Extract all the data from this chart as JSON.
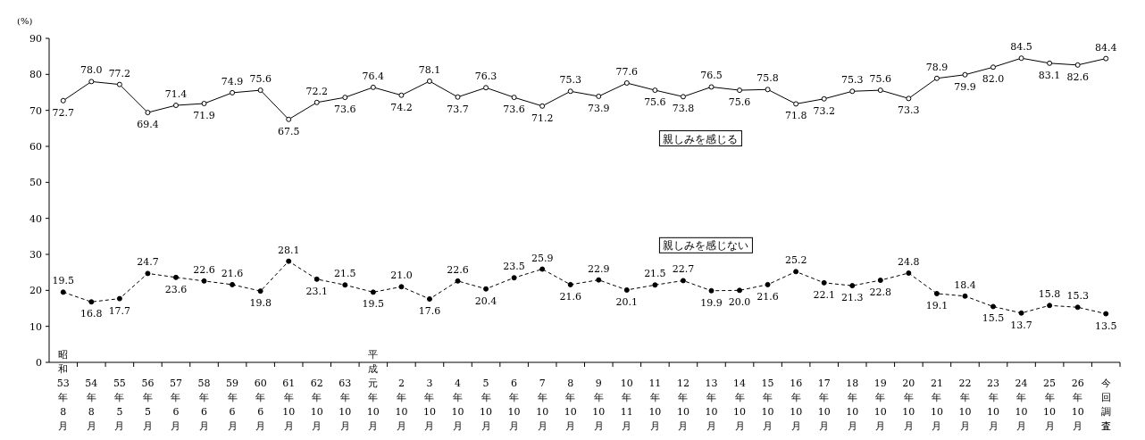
{
  "chart_data": {
    "type": "line",
    "ylabel": "(%)",
    "categories": [
      "昭和53年8月",
      "54年8月",
      "55年5月",
      "56年5月",
      "57年6月",
      "58年6月",
      "59年6月",
      "60年6月",
      "61年10月",
      "62年10月",
      "63年10月",
      "平成元年10月",
      "2年10月",
      "3年10月",
      "4年10月",
      "5年10月",
      "6年10月",
      "7年10月",
      "8年10月",
      "9年10月",
      "10年11月",
      "11年10月",
      "12年10月",
      "13年10月",
      "14年10月",
      "15年10月",
      "16年10月",
      "17年10月",
      "18年10月",
      "19年10月",
      "20年10月",
      "21年10月",
      "22年10月",
      "23年10月",
      "24年10月",
      "25年10月",
      "26年10月",
      "今回調査"
    ],
    "series": [
      {
        "name": "親しみを感じる",
        "color": "#000000",
        "marker": "circle",
        "line_style": "solid",
        "values": [
          72.7,
          78.0,
          77.2,
          69.4,
          71.4,
          71.9,
          74.9,
          75.6,
          67.5,
          72.2,
          73.6,
          76.4,
          74.2,
          78.1,
          73.7,
          76.3,
          73.6,
          71.2,
          75.3,
          73.9,
          77.6,
          75.6,
          73.8,
          76.5,
          75.6,
          75.8,
          71.8,
          73.2,
          75.3,
          75.6,
          73.3,
          78.9,
          79.9,
          82.0,
          84.5,
          83.1,
          82.6,
          84.4
        ],
        "value_labels": [
          "72.7",
          "78.0",
          "77.2",
          "69.4",
          "71.4",
          "71.9",
          "74.9",
          "75.6",
          "67.5",
          "72.2",
          "73.6",
          "76.4",
          "74.2",
          "78.1",
          "73.7",
          "76.3",
          "73.6",
          "71.2",
          "75.3",
          "73.9",
          "77.6",
          "75.6",
          "73.8",
          "76.5",
          "75.6",
          "75.8",
          "71.8",
          "73.2",
          "75.3",
          "75.6",
          "73.3",
          "78.9",
          "79.9",
          "82.0",
          "84.5",
          "83.1",
          "82.6",
          "84.4"
        ]
      },
      {
        "name": "親しみを感じない",
        "color": "#000000",
        "marker": "circle",
        "line_style": "dashed",
        "values": [
          19.5,
          16.8,
          17.7,
          24.7,
          23.6,
          22.6,
          21.6,
          19.8,
          28.1,
          23.1,
          21.5,
          19.5,
          21.0,
          17.6,
          22.6,
          20.4,
          23.5,
          25.9,
          21.6,
          22.9,
          20.1,
          21.5,
          22.7,
          19.9,
          20.0,
          21.6,
          25.2,
          22.1,
          21.3,
          22.8,
          24.8,
          19.1,
          18.4,
          15.5,
          13.7,
          15.8,
          15.3,
          13.5
        ],
        "value_labels": [
          "19.5",
          "16.8",
          "17.7",
          "24.7",
          "23.6",
          "22.6",
          "21.6",
          "19.8",
          "28.1",
          "23.1",
          "21.5",
          "19.5",
          "21.0",
          "17.6",
          "22.6",
          "20.4",
          "23.5",
          "25.9",
          "21.6",
          "22.9",
          "20.1",
          "21.5",
          "22.7",
          "19.9",
          "20.0",
          "21.6",
          "25.2",
          "22.1",
          "21.3",
          "22.8",
          "24.8",
          "19.1",
          "18.4",
          "15.5",
          "13.7",
          "15.8",
          "15.3",
          "13.5"
        ]
      }
    ],
    "ylim": [
      0,
      90
    ],
    "yticks": [
      0,
      10,
      20,
      30,
      40,
      50,
      60,
      70,
      80,
      90
    ],
    "legend": "center"
  }
}
